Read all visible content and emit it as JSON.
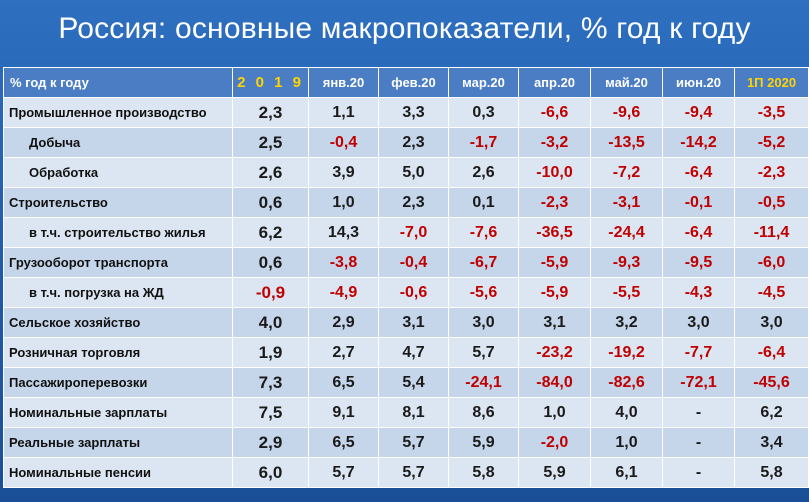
{
  "title": "Россия: основные макропоказатели, % год к году",
  "table": {
    "label_header": "% год к году",
    "columns": [
      "2 0 1 9",
      "янв.20",
      "фев.20",
      "мар.20",
      "апр.20",
      "май.20",
      "июн.20",
      "1П 2020"
    ],
    "rows": [
      {
        "label": "Промышленное производство",
        "indent": false,
        "values": [
          "2,3",
          "1,1",
          "3,3",
          "0,3",
          "-6,6",
          "-9,6",
          "-9,4",
          "-3,5"
        ]
      },
      {
        "label": "Добыча",
        "indent": true,
        "values": [
          "2,5",
          "-0,4",
          "2,3",
          "-1,7",
          "-3,2",
          "-13,5",
          "-14,2",
          "-5,2"
        ]
      },
      {
        "label": "Обработка",
        "indent": true,
        "values": [
          "2,6",
          "3,9",
          "5,0",
          "2,6",
          "-10,0",
          "-7,2",
          "-6,4",
          "-2,3"
        ]
      },
      {
        "label": "Строительство",
        "indent": false,
        "values": [
          "0,6",
          "1,0",
          "2,3",
          "0,1",
          "-2,3",
          "-3,1",
          "-0,1",
          "-0,5"
        ]
      },
      {
        "label": "в т.ч. строительство жилья",
        "indent": true,
        "values": [
          "6,2",
          "14,3",
          "-7,0",
          "-7,6",
          "-36,5",
          "-24,4",
          "-6,4",
          "-11,4"
        ]
      },
      {
        "label": "Грузооборот транспорта",
        "indent": false,
        "values": [
          "0,6",
          "-3,8",
          "-0,4",
          "-6,7",
          "-5,9",
          "-9,3",
          "-9,5",
          "-6,0"
        ]
      },
      {
        "label": "в т.ч. погрузка на ЖД",
        "indent": true,
        "values": [
          "-0,9",
          "-4,9",
          "-0,6",
          "-5,6",
          "-5,9",
          "-5,5",
          "-4,3",
          "-4,5"
        ]
      },
      {
        "label": "Сельское хозяйство",
        "indent": false,
        "values": [
          "4,0",
          "2,9",
          "3,1",
          "3,0",
          "3,1",
          "3,2",
          "3,0",
          "3,0"
        ]
      },
      {
        "label": "Розничная торговля",
        "indent": false,
        "values": [
          "1,9",
          "2,7",
          "4,7",
          "5,7",
          "-23,2",
          "-19,2",
          "-7,7",
          "-6,4"
        ]
      },
      {
        "label": "Пассажироперевозки",
        "indent": false,
        "values": [
          "7,3",
          "6,5",
          "5,4",
          "-24,1",
          "-84,0",
          "-82,6",
          "-72,1",
          "-45,6"
        ]
      },
      {
        "label": "Номинальные зарплаты",
        "indent": false,
        "values": [
          "7,5",
          "9,1",
          "8,1",
          "8,6",
          "1,0",
          "4,0",
          "-",
          "6,2"
        ]
      },
      {
        "label": "Реальные зарплаты",
        "indent": false,
        "values": [
          "2,9",
          "6,5",
          "5,7",
          "5,9",
          "-2,0",
          "1,0",
          "-",
          "3,4"
        ]
      },
      {
        "label": "Номинальные пенсии",
        "indent": false,
        "values": [
          "6,0",
          "5,7",
          "5,7",
          "5,8",
          "5,9",
          "6,1",
          "-",
          "5,8"
        ]
      }
    ]
  },
  "colors": {
    "background": "#1F5BAA",
    "header_row": "#4A7DC4",
    "header_highlight_text": "#FFD200",
    "row_light": "#DCE6F2",
    "row_dark": "#C5D5EA",
    "negative_text": "#C00000",
    "positive_text": "#1A1A1A"
  }
}
